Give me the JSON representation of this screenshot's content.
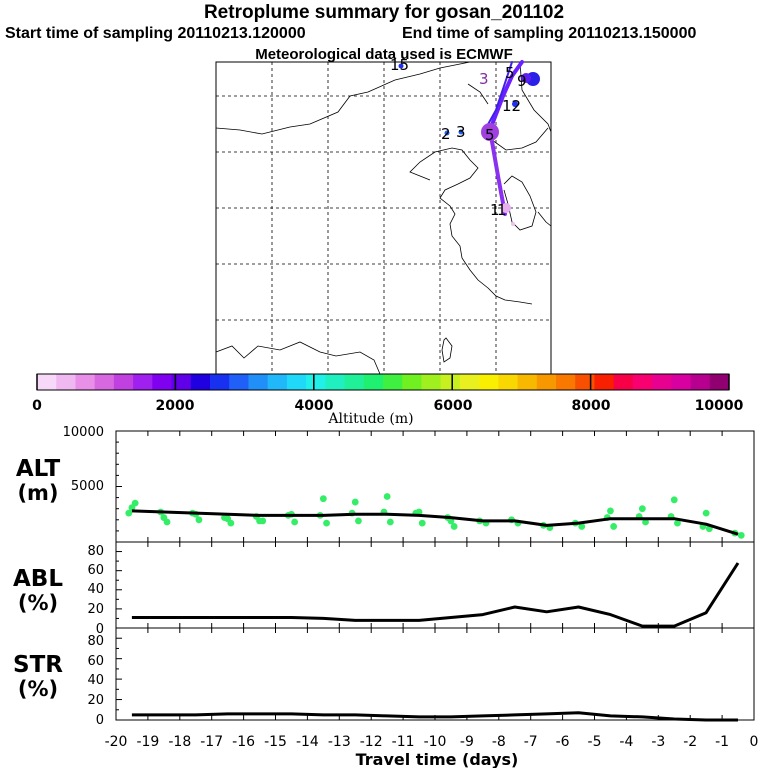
{
  "header": {
    "title": "Retroplume summary for gosan_201102",
    "start_label": "Start time of sampling 20110213.120000",
    "end_label": "End time of sampling 20110213.150000",
    "met_label": "Meteorological data used is ECMWF"
  },
  "map": {
    "day_labels": [
      "15",
      "3",
      "5",
      "9",
      "12",
      "2",
      "3",
      "5",
      "1",
      "1"
    ],
    "trajectory_color": "#7b2cff"
  },
  "colorbar": {
    "title": "Altitude (m)",
    "tick_labels": [
      "0",
      "2000",
      "4000",
      "6000",
      "8000",
      "10000"
    ],
    "colors": [
      "#f8d8f8",
      "#f0b8f0",
      "#e890e8",
      "#d868e0",
      "#c040e0",
      "#a020f0",
      "#8000f0",
      "#6000e8",
      "#2000e0",
      "#1830f0",
      "#2060f8",
      "#2090f8",
      "#20b8f8",
      "#20d8f8",
      "#20f0e8",
      "#20f0c0",
      "#20f098",
      "#20f070",
      "#40f040",
      "#70f020",
      "#a0f020",
      "#c8f020",
      "#e8f020",
      "#f8f000",
      "#f8d800",
      "#f8b800",
      "#f89800",
      "#f87800",
      "#f85000",
      "#f82000",
      "#f80048",
      "#f80070",
      "#e80090",
      "#d800a0",
      "#b80090",
      "#900070"
    ]
  },
  "chart_data": [
    {
      "type": "line",
      "panel": "ALT",
      "ylabel_line1": "ALT",
      "ylabel_line2": "(m)",
      "ylim": [
        0,
        10000
      ],
      "ytick_labels": [
        "10000",
        "5000"
      ],
      "xlim": [
        -20,
        0
      ],
      "x": [
        -19.5,
        -18.5,
        -17.5,
        -16.5,
        -15.5,
        -14.5,
        -13.5,
        -12.5,
        -11.5,
        -10.5,
        -9.5,
        -8.5,
        -7.5,
        -6.5,
        -5.5,
        -4.5,
        -3.5,
        -2.5,
        -1.5,
        -0.5
      ],
      "y": [
        2800,
        2700,
        2600,
        2500,
        2400,
        2400,
        2400,
        2500,
        2500,
        2400,
        2200,
        1900,
        1900,
        1500,
        1700,
        2100,
        2100,
        2100,
        1600,
        700
      ],
      "scatter_color": "#33ee66",
      "scatter_x": [
        -19.6,
        -19.4,
        -18.6,
        -18.4,
        -17.6,
        -17.4,
        -16.6,
        -16.4,
        -15.6,
        -15.4,
        -14.6,
        -14.4,
        -13.6,
        -13.4,
        -12.6,
        -12.4,
        -11.6,
        -11.4,
        -10.6,
        -10.4,
        -9.6,
        -9.4,
        -8.6,
        -8.4,
        -7.6,
        -7.4,
        -6.6,
        -6.4,
        -5.6,
        -5.4,
        -4.6,
        -4.4,
        -3.6,
        -3.4,
        -2.6,
        -2.4,
        -1.6,
        -1.4,
        -0.6,
        -0.4,
        -19.5,
        -18.5,
        -17.5,
        -16.5,
        -15.5,
        -14.5,
        -13.5,
        -12.5,
        -11.5,
        -10.5,
        -9.5,
        -4.5,
        -3.5,
        -2.5,
        -1.5
      ],
      "scatter_y": [
        2600,
        3500,
        2700,
        1800,
        2600,
        2000,
        2200,
        1700,
        2300,
        1900,
        2400,
        1800,
        2400,
        1700,
        2600,
        1900,
        2700,
        1800,
        2600,
        1700,
        2200,
        1400,
        1900,
        1700,
        2000,
        1700,
        1500,
        1300,
        1700,
        1400,
        2200,
        1400,
        2300,
        1800,
        2300,
        1700,
        1400,
        1200,
        800,
        600,
        3100,
        2200,
        2500,
        2100,
        1900,
        2500,
        3900,
        3600,
        4100,
        2700,
        1900,
        2800,
        3000,
        3800,
        2600
      ]
    },
    {
      "type": "line",
      "panel": "ABL",
      "ylabel_line1": "ABL",
      "ylabel_line2": "(%)",
      "ylim": [
        0,
        90
      ],
      "ytick_labels": [
        "0",
        "20",
        "40",
        "60",
        "80"
      ],
      "xlim": [
        -20,
        0
      ],
      "x": [
        -19.5,
        -18.5,
        -17.5,
        -16.5,
        -15.5,
        -14.5,
        -13.5,
        -12.5,
        -11.5,
        -10.5,
        -9.5,
        -8.5,
        -7.5,
        -6.5,
        -5.5,
        -4.5,
        -3.5,
        -2.5,
        -1.5,
        -0.5
      ],
      "y": [
        11,
        11,
        11,
        11,
        11,
        11,
        10,
        8,
        8,
        8,
        11,
        14,
        22,
        17,
        22,
        14,
        2,
        2,
        16,
        68
      ]
    },
    {
      "type": "line",
      "panel": "STR",
      "ylabel_line1": "STR",
      "ylabel_line2": "(%)",
      "ylim": [
        0,
        90
      ],
      "ytick_labels": [
        "0",
        "20",
        "40",
        "60",
        "80"
      ],
      "xlim": [
        -20,
        0
      ],
      "x": [
        -19.5,
        -18.5,
        -17.5,
        -16.5,
        -15.5,
        -14.5,
        -13.5,
        -12.5,
        -11.5,
        -10.5,
        -9.5,
        -8.5,
        -7.5,
        -6.5,
        -5.5,
        -4.5,
        -3.5,
        -2.5,
        -1.5,
        -0.5
      ],
      "y": [
        5,
        5,
        5,
        6,
        6,
        6,
        5,
        5,
        4,
        3,
        3,
        4,
        5,
        6,
        7,
        4,
        3,
        1,
        0,
        0
      ],
      "xlabel": "Travel time (days)",
      "xtick_labels": [
        "-20",
        "-19",
        "-18",
        "-17",
        "-16",
        "-15",
        "-14",
        "-13",
        "-12",
        "-11",
        "-10",
        "-9",
        "-8",
        "-7",
        "-6",
        "-5",
        "-4",
        "-3",
        "-2",
        "-1",
        "0"
      ]
    }
  ]
}
